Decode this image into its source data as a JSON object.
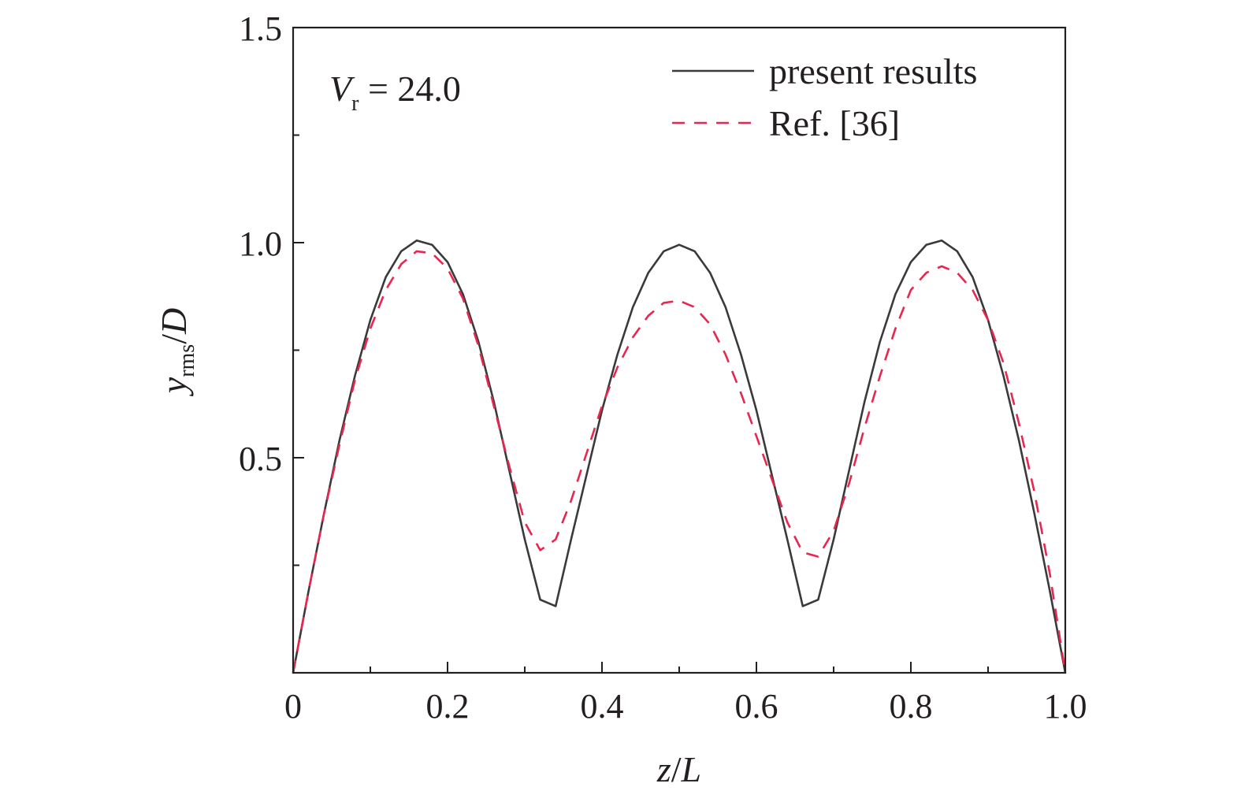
{
  "chart_data": {
    "type": "line",
    "title": "",
    "annotation": {
      "var": "V",
      "sub": "r",
      "rest": " = 24.0"
    },
    "xlabel": {
      "var": "z",
      "slash": "/",
      "den": "L"
    },
    "ylabel": {
      "var": "y",
      "sub": "rms",
      "slash": "/",
      "den": "D"
    },
    "xlim": [
      0,
      1.0
    ],
    "ylim": [
      0,
      1.5
    ],
    "xticks": [
      "0",
      "0.2",
      "0.4",
      "0.6",
      "0.8",
      "1.0"
    ],
    "yticks": [
      "0.5",
      "1.0",
      "1.5"
    ],
    "grid": false,
    "legend_position": "top-right",
    "series": [
      {
        "name": "present results",
        "style": "solid",
        "color": "#3a3a3a",
        "x": [
          0,
          0.02,
          0.04,
          0.06,
          0.08,
          0.1,
          0.12,
          0.14,
          0.16,
          0.18,
          0.2,
          0.22,
          0.24,
          0.26,
          0.28,
          0.3,
          0.32,
          0.34,
          0.36,
          0.38,
          0.4,
          0.42,
          0.44,
          0.46,
          0.48,
          0.5,
          0.52,
          0.54,
          0.56,
          0.58,
          0.6,
          0.62,
          0.64,
          0.66,
          0.68,
          0.7,
          0.72,
          0.74,
          0.76,
          0.78,
          0.8,
          0.82,
          0.84,
          0.86,
          0.88,
          0.9,
          0.92,
          0.94,
          0.96,
          0.98,
          1.0
        ],
        "y": [
          0.0,
          0.19,
          0.37,
          0.54,
          0.69,
          0.82,
          0.92,
          0.98,
          1.005,
          0.995,
          0.955,
          0.88,
          0.77,
          0.63,
          0.47,
          0.31,
          0.17,
          0.155,
          0.31,
          0.46,
          0.61,
          0.74,
          0.85,
          0.93,
          0.98,
          0.995,
          0.98,
          0.93,
          0.85,
          0.74,
          0.61,
          0.46,
          0.31,
          0.155,
          0.17,
          0.31,
          0.47,
          0.63,
          0.77,
          0.88,
          0.955,
          0.995,
          1.005,
          0.98,
          0.92,
          0.82,
          0.69,
          0.54,
          0.37,
          0.19,
          0.0
        ]
      },
      {
        "name": "Ref. [36]",
        "style": "dashed",
        "color": "#e8264f",
        "x": [
          0,
          0.02,
          0.04,
          0.06,
          0.08,
          0.1,
          0.12,
          0.14,
          0.16,
          0.18,
          0.2,
          0.22,
          0.24,
          0.26,
          0.28,
          0.3,
          0.32,
          0.34,
          0.36,
          0.38,
          0.4,
          0.42,
          0.44,
          0.46,
          0.48,
          0.5,
          0.52,
          0.54,
          0.56,
          0.58,
          0.6,
          0.62,
          0.64,
          0.66,
          0.68,
          0.7,
          0.72,
          0.74,
          0.76,
          0.78,
          0.8,
          0.82,
          0.84,
          0.86,
          0.88,
          0.9,
          0.92,
          0.94,
          0.96,
          0.98,
          1.0
        ],
        "y": [
          0.0,
          0.19,
          0.37,
          0.53,
          0.68,
          0.8,
          0.89,
          0.95,
          0.98,
          0.975,
          0.94,
          0.87,
          0.76,
          0.62,
          0.48,
          0.35,
          0.285,
          0.31,
          0.4,
          0.51,
          0.62,
          0.71,
          0.78,
          0.83,
          0.86,
          0.865,
          0.85,
          0.81,
          0.74,
          0.65,
          0.55,
          0.45,
          0.35,
          0.28,
          0.27,
          0.33,
          0.44,
          0.57,
          0.69,
          0.8,
          0.89,
          0.93,
          0.945,
          0.93,
          0.89,
          0.82,
          0.72,
          0.58,
          0.42,
          0.23,
          0.0
        ]
      }
    ]
  }
}
